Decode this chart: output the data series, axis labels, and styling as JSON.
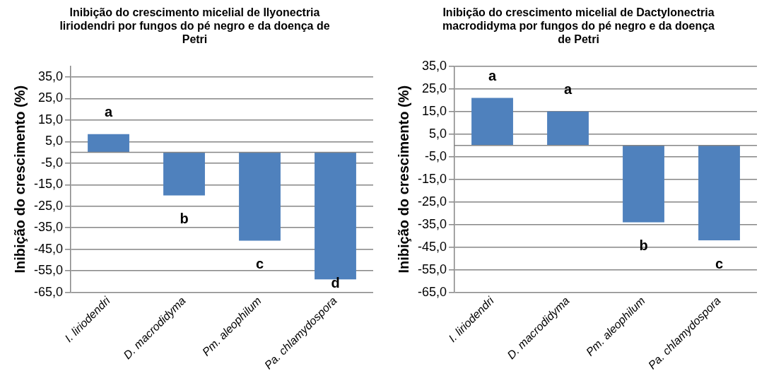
{
  "chart_data": [
    {
      "type": "bar",
      "title": "Inibição do crescimento micelial de Ilyonectria liriodendri por fungos do pé negro e da doença de Petri",
      "ylabel": "Inibição do crescimento (%)",
      "categories": [
        "I. liriodendri",
        "D. macrodidyma",
        "Pm. aleophilum",
        "Pa. chlamydospora"
      ],
      "values": [
        8.5,
        -20,
        -41,
        -59
      ],
      "color": "#4f81bd",
      "ylim": [
        -65,
        40
      ],
      "yticks": [
        {
          "value": -65,
          "label": "-65,0"
        },
        {
          "value": -55,
          "label": "-55,0"
        },
        {
          "value": -45,
          "label": "-45,0"
        },
        {
          "value": -35,
          "label": "-35,0"
        },
        {
          "value": -25,
          "label": "-25,0"
        },
        {
          "value": -15,
          "label": "-15,0"
        },
        {
          "value": -5,
          "label": "-5,0"
        },
        {
          "value": 5,
          "label": "5,0"
        },
        {
          "value": 15,
          "label": "15,0"
        },
        {
          "value": 25,
          "label": "25,0"
        },
        {
          "value": 35,
          "label": "35,0"
        }
      ],
      "grid": "y",
      "annotations": [
        "a",
        "b",
        "c",
        "d"
      ]
    },
    {
      "type": "bar",
      "title": "Inibição do crescimento micelial de Dactylonectria macrodidyma por fungos do pé negro e da doença de Petri",
      "ylabel": "Inibição do crescimento (%)",
      "categories": [
        "I. liriodendri",
        "D. macrodidyma",
        "Pm. aleophilum",
        "Pa. chlamydospora"
      ],
      "values": [
        21,
        15,
        -34,
        -42
      ],
      "color": "#4f81bd",
      "ylim": [
        -65,
        35
      ],
      "yticks": [
        {
          "value": -65,
          "label": "-65,0"
        },
        {
          "value": -55,
          "label": "-55,0"
        },
        {
          "value": -45,
          "label": "-45,0"
        },
        {
          "value": -35,
          "label": "-35,0"
        },
        {
          "value": -25,
          "label": "-25,0"
        },
        {
          "value": -15,
          "label": "-15,0"
        },
        {
          "value": -5,
          "label": "-5,0"
        },
        {
          "value": 5,
          "label": "5,0"
        },
        {
          "value": 15,
          "label": "15,0"
        },
        {
          "value": 25,
          "label": "25,0"
        },
        {
          "value": 35,
          "label": "35,0"
        }
      ],
      "grid": "y",
      "annotations": [
        "a",
        "a",
        "b",
        "c"
      ]
    }
  ]
}
